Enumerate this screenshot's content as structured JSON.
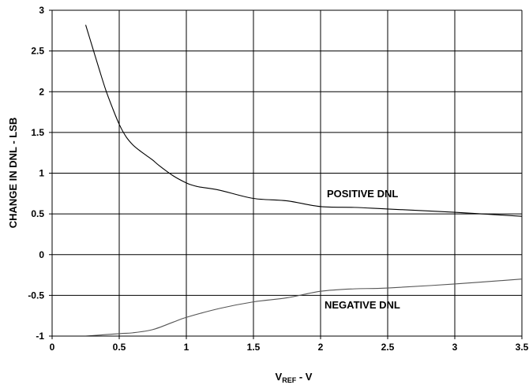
{
  "chart_data": {
    "type": "line",
    "xlabel_main": "V",
    "xlabel_sub": "REF",
    "xlabel_suffix": " - V",
    "ylabel": "CHANGE IN DNL - LSB",
    "xlim": [
      0,
      3.5
    ],
    "ylim": [
      -1,
      3
    ],
    "x_ticks": [
      "0",
      "0.5",
      "1",
      "1.5",
      "2",
      "2.5",
      "3",
      "3.5"
    ],
    "y_ticks": [
      "-1",
      "-0.5",
      "0",
      "0.5",
      "1",
      "1.5",
      "2",
      "2.5",
      "3"
    ],
    "grid": true,
    "series": [
      {
        "name": "POSITIVE DNL",
        "color": "#000000",
        "points": [
          [
            0.25,
            2.82
          ],
          [
            0.3,
            2.55
          ],
          [
            0.35,
            2.28
          ],
          [
            0.4,
            2.02
          ],
          [
            0.45,
            1.8
          ],
          [
            0.5,
            1.6
          ],
          [
            0.55,
            1.45
          ],
          [
            0.6,
            1.35
          ],
          [
            0.65,
            1.28
          ],
          [
            0.7,
            1.22
          ],
          [
            0.75,
            1.16
          ],
          [
            0.8,
            1.09
          ],
          [
            0.9,
            0.97
          ],
          [
            1.0,
            0.88
          ],
          [
            1.05,
            0.85
          ],
          [
            1.1,
            0.83
          ],
          [
            1.25,
            0.79
          ],
          [
            1.5,
            0.69
          ],
          [
            1.75,
            0.66
          ],
          [
            2.0,
            0.59
          ],
          [
            2.25,
            0.58
          ],
          [
            2.5,
            0.56
          ],
          [
            3.0,
            0.52
          ],
          [
            3.5,
            0.47
          ]
        ]
      },
      {
        "name": "NEGATIVE DNL",
        "color": "#555555",
        "points": [
          [
            0.25,
            -1.0
          ],
          [
            0.5,
            -0.97
          ],
          [
            0.6,
            -0.96
          ],
          [
            0.75,
            -0.92
          ],
          [
            0.9,
            -0.83
          ],
          [
            1.0,
            -0.77
          ],
          [
            1.25,
            -0.66
          ],
          [
            1.5,
            -0.58
          ],
          [
            1.75,
            -0.53
          ],
          [
            2.0,
            -0.45
          ],
          [
            2.25,
            -0.42
          ],
          [
            2.5,
            -0.41
          ],
          [
            3.0,
            -0.36
          ],
          [
            3.5,
            -0.3
          ]
        ]
      }
    ]
  }
}
